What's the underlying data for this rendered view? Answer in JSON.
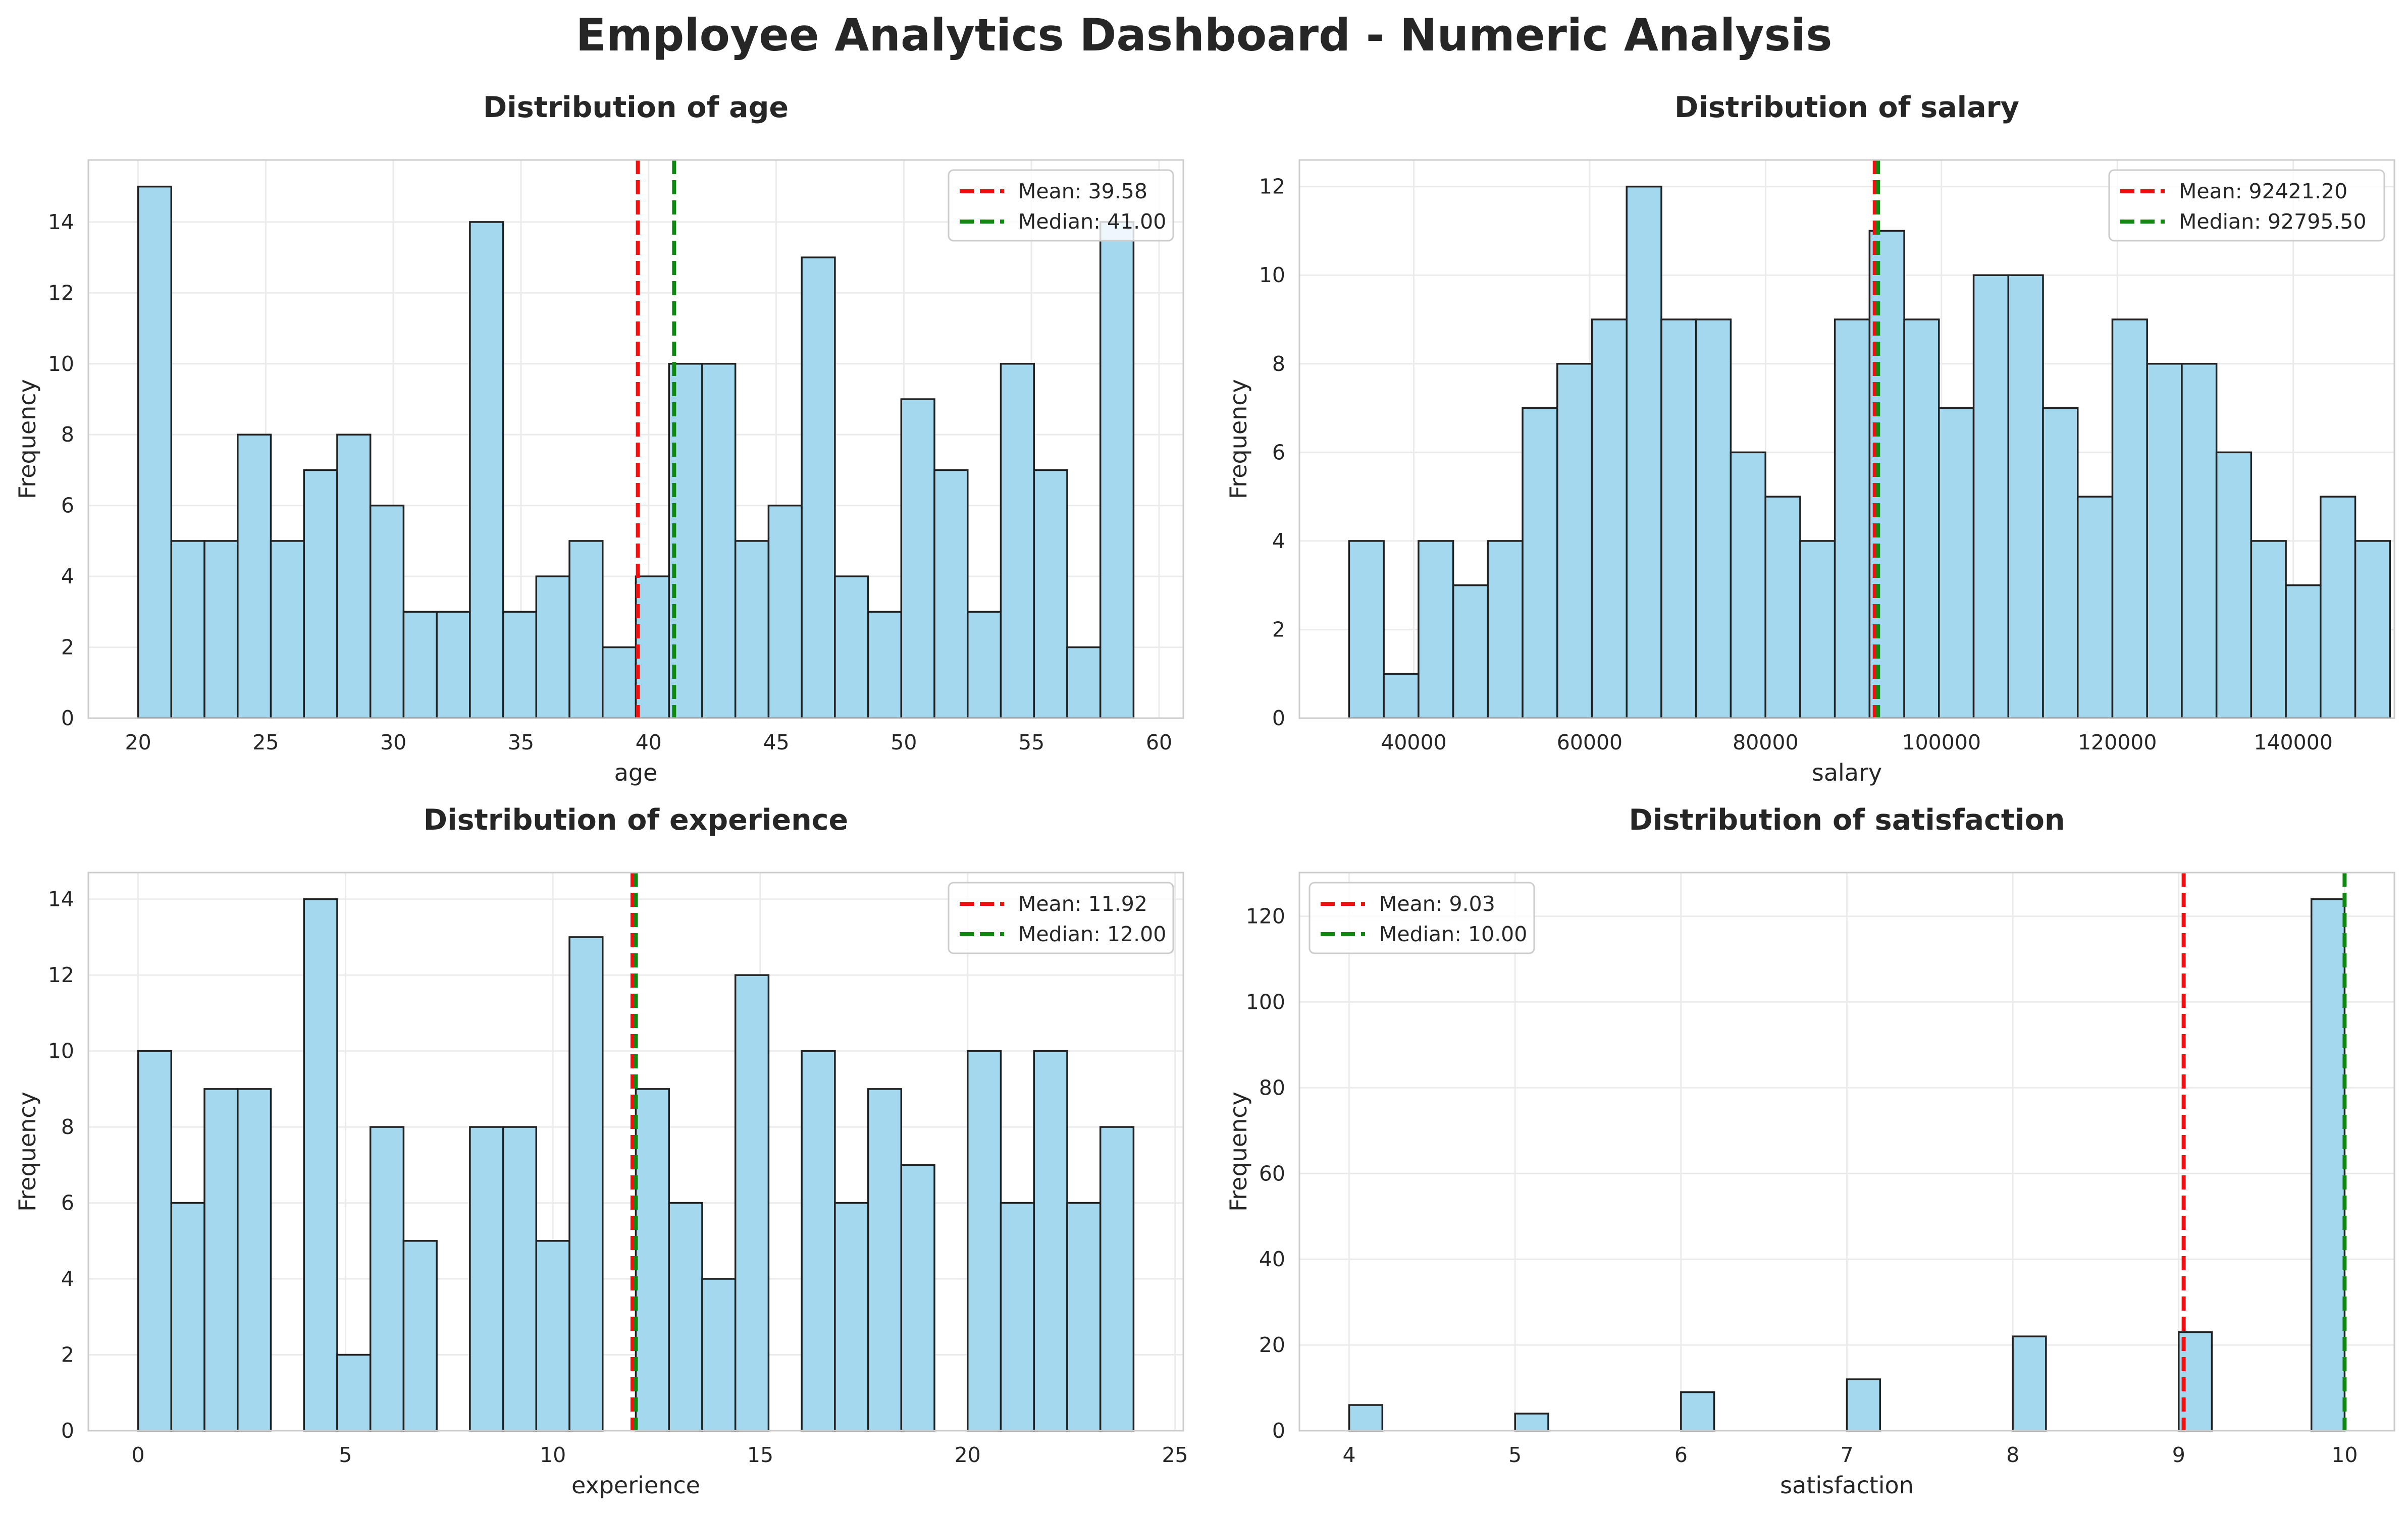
{
  "page": {
    "title": "Employee Analytics Dashboard - Numeric Analysis"
  },
  "colors": {
    "bar_fill": "#a4d8ee",
    "bar_edge": "#222222",
    "mean_line": "#ee1111",
    "median_line": "#118811",
    "grid": "#ebebeb",
    "axes_border": "#cccccc",
    "text": "#262626"
  },
  "chart_data": [
    {
      "type": "bar",
      "title": "Distribution of age",
      "xlabel": "age",
      "ylabel": "Frequency",
      "xlim": [
        18.05,
        60.95
      ],
      "ylim": [
        0,
        15.75
      ],
      "xticks": [
        20,
        25,
        30,
        35,
        40,
        45,
        50,
        55,
        60
      ],
      "xtick_labels": [
        "20",
        "25",
        "30",
        "35",
        "40",
        "45",
        "50",
        "55",
        "60"
      ],
      "yticks": [
        0,
        2,
        4,
        6,
        8,
        10,
        12,
        14
      ],
      "yticks_labels": [
        "0",
        "2",
        "4",
        "6",
        "8",
        "10",
        "12",
        "14"
      ],
      "bin_start": 20,
      "bin_width": 1.3,
      "values": [
        15,
        5,
        5,
        8,
        5,
        7,
        8,
        6,
        3,
        3,
        14,
        3,
        4,
        5,
        2,
        4,
        10,
        10,
        5,
        6,
        13,
        4,
        3,
        9,
        7,
        3,
        10,
        7,
        2,
        14
      ],
      "mean": 39.58,
      "median": 41.0,
      "legend": [
        "Mean: 39.58",
        "Median: 41.00"
      ],
      "legend_position": "upper-right",
      "grid": true
    },
    {
      "type": "bar",
      "title": "Distribution of salary",
      "xlabel": "salary",
      "ylabel": "Frequency",
      "xlim": [
        27000,
        151500
      ],
      "ylim": [
        0,
        12.6
      ],
      "xticks": [
        40000,
        60000,
        80000,
        100000,
        120000,
        140000
      ],
      "xtick_labels": [
        "40000",
        "60000",
        "80000",
        "100000",
        "120000",
        "140000"
      ],
      "yticks": [
        0,
        2,
        4,
        6,
        8,
        10,
        12
      ],
      "yticks_labels": [
        "0",
        "2",
        "4",
        "6",
        "8",
        "10",
        "12"
      ],
      "bin_start": 32650,
      "bin_width": 3945,
      "values": [
        4,
        1,
        4,
        3,
        4,
        7,
        8,
        9,
        12,
        9,
        9,
        6,
        5,
        4,
        9,
        11,
        9,
        7,
        10,
        10,
        7,
        5,
        9,
        8,
        8,
        6,
        4,
        3,
        5,
        4
      ],
      "mean": 92421.2,
      "median": 92795.5,
      "legend": [
        "Mean: 92421.20",
        "Median: 92795.50"
      ],
      "legend_position": "upper-right",
      "grid": true
    },
    {
      "type": "bar",
      "title": "Distribution of experience",
      "xlabel": "experience",
      "ylabel": "Frequency",
      "xlim": [
        -1.2,
        25.2
      ],
      "ylim": [
        0,
        14.7
      ],
      "xticks": [
        0,
        5,
        10,
        15,
        20,
        25
      ],
      "xtick_labels": [
        "0",
        "5",
        "10",
        "15",
        "20",
        "25"
      ],
      "yticks": [
        0,
        2,
        4,
        6,
        8,
        10,
        12,
        14
      ],
      "yticks_labels": [
        "0",
        "2",
        "4",
        "6",
        "8",
        "10",
        "12",
        "14"
      ],
      "bin_start": 0,
      "bin_width": 0.8,
      "values": [
        10,
        6,
        9,
        9,
        0,
        14,
        2,
        8,
        5,
        0,
        8,
        8,
        5,
        13,
        0,
        9,
        6,
        4,
        12,
        0,
        10,
        6,
        9,
        7,
        0,
        10,
        6,
        10,
        6,
        8
      ],
      "mean": 11.92,
      "median": 12.0,
      "legend": [
        "Mean: 11.92",
        "Median: 12.00"
      ],
      "legend_position": "upper-right",
      "grid": true
    },
    {
      "type": "bar",
      "title": "Distribution of satisfaction",
      "xlabel": "satisfaction",
      "ylabel": "Frequency",
      "xlim": [
        3.7,
        10.3
      ],
      "ylim": [
        0,
        130.2
      ],
      "xticks": [
        4,
        5,
        6,
        7,
        8,
        9,
        10
      ],
      "xtick_labels": [
        "4",
        "5",
        "6",
        "7",
        "8",
        "9",
        "10"
      ],
      "yticks": [
        0,
        20,
        40,
        60,
        80,
        100,
        120
      ],
      "yticks_labels": [
        "0",
        "20",
        "40",
        "60",
        "80",
        "100",
        "120"
      ],
      "bin_start": 4,
      "bin_width": 0.2,
      "values": [
        6,
        0,
        0,
        0,
        0,
        4,
        0,
        0,
        0,
        0,
        9,
        0,
        0,
        0,
        0,
        12,
        0,
        0,
        0,
        0,
        22,
        0,
        0,
        0,
        0,
        23,
        0,
        0,
        0,
        124
      ],
      "mean": 9.03,
      "median": 10.0,
      "legend": [
        "Mean: 9.03",
        "Median: 10.00"
      ],
      "legend_position": "upper-left",
      "grid": true
    }
  ]
}
